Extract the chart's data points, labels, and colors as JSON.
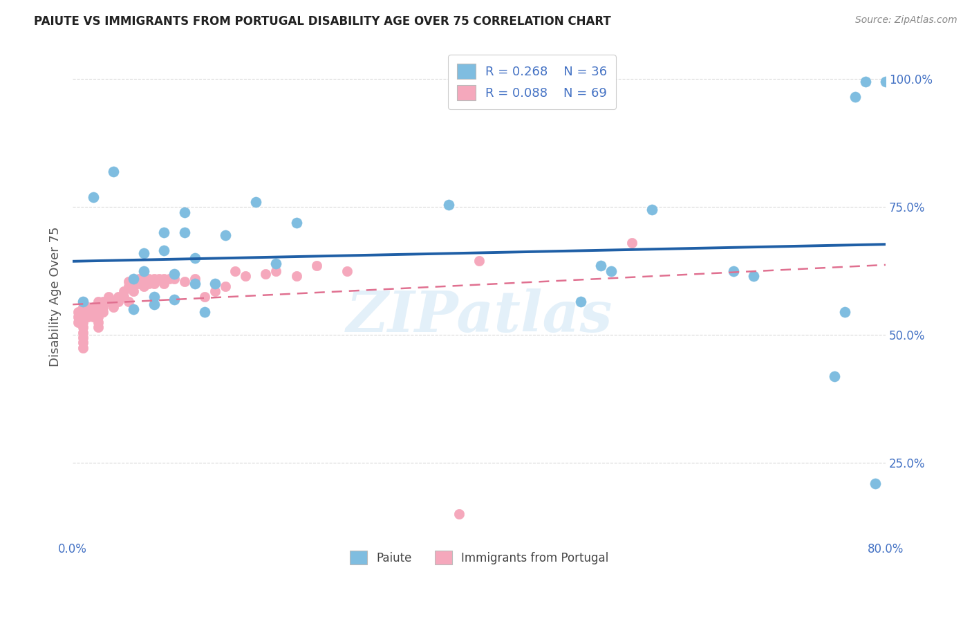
{
  "title": "PAIUTE VS IMMIGRANTS FROM PORTUGAL DISABILITY AGE OVER 75 CORRELATION CHART",
  "source": "Source: ZipAtlas.com",
  "ylabel": "Disability Age Over 75",
  "xlim": [
    0,
    0.8
  ],
  "ylim": [
    0.1,
    1.05
  ],
  "ytick_positions": [
    0.25,
    0.5,
    0.75,
    1.0
  ],
  "ytick_labels": [
    "25.0%",
    "50.0%",
    "75.0%",
    "100.0%"
  ],
  "legend_label1": "Paiute",
  "legend_label2": "Immigrants from Portugal",
  "R1": 0.268,
  "N1": 36,
  "R2": 0.088,
  "N2": 69,
  "color_blue": "#7fbde0",
  "color_pink": "#f5a8bc",
  "color_blue_line": "#1f5fa6",
  "color_pink_line": "#e07090",
  "paiute_x": [
    0.01,
    0.02,
    0.04,
    0.06,
    0.06,
    0.07,
    0.07,
    0.08,
    0.08,
    0.09,
    0.09,
    0.1,
    0.1,
    0.11,
    0.11,
    0.12,
    0.12,
    0.13,
    0.14,
    0.15,
    0.18,
    0.2,
    0.22,
    0.37,
    0.5,
    0.52,
    0.53,
    0.57,
    0.65,
    0.67,
    0.75,
    0.76,
    0.77,
    0.78,
    0.79,
    0.8
  ],
  "paiute_y": [
    0.565,
    0.77,
    0.82,
    0.61,
    0.55,
    0.66,
    0.625,
    0.575,
    0.56,
    0.7,
    0.665,
    0.62,
    0.57,
    0.74,
    0.7,
    0.65,
    0.6,
    0.545,
    0.6,
    0.695,
    0.76,
    0.64,
    0.72,
    0.755,
    0.565,
    0.635,
    0.625,
    0.745,
    0.625,
    0.615,
    0.42,
    0.545,
    0.965,
    0.995,
    0.21,
    0.995
  ],
  "portugal_x": [
    0.005,
    0.005,
    0.005,
    0.01,
    0.01,
    0.01,
    0.01,
    0.01,
    0.01,
    0.01,
    0.01,
    0.01,
    0.01,
    0.015,
    0.015,
    0.015,
    0.02,
    0.02,
    0.02,
    0.025,
    0.025,
    0.025,
    0.025,
    0.025,
    0.025,
    0.03,
    0.03,
    0.03,
    0.035,
    0.035,
    0.04,
    0.04,
    0.045,
    0.045,
    0.05,
    0.05,
    0.055,
    0.055,
    0.055,
    0.06,
    0.06,
    0.065,
    0.065,
    0.07,
    0.07,
    0.075,
    0.075,
    0.08,
    0.08,
    0.085,
    0.09,
    0.09,
    0.095,
    0.1,
    0.11,
    0.12,
    0.13,
    0.14,
    0.15,
    0.16,
    0.17,
    0.19,
    0.2,
    0.22,
    0.24,
    0.27,
    0.38,
    0.4,
    0.55
  ],
  "portugal_y": [
    0.545,
    0.535,
    0.525,
    0.565,
    0.555,
    0.545,
    0.535,
    0.525,
    0.515,
    0.505,
    0.495,
    0.485,
    0.475,
    0.555,
    0.545,
    0.535,
    0.555,
    0.545,
    0.535,
    0.565,
    0.555,
    0.545,
    0.535,
    0.525,
    0.515,
    0.565,
    0.555,
    0.545,
    0.575,
    0.565,
    0.565,
    0.555,
    0.575,
    0.565,
    0.585,
    0.575,
    0.605,
    0.595,
    0.565,
    0.595,
    0.585,
    0.61,
    0.6,
    0.605,
    0.595,
    0.61,
    0.6,
    0.61,
    0.6,
    0.61,
    0.61,
    0.6,
    0.61,
    0.61,
    0.605,
    0.61,
    0.575,
    0.585,
    0.595,
    0.625,
    0.615,
    0.62,
    0.625,
    0.615,
    0.635,
    0.625,
    0.15,
    0.645,
    0.68
  ],
  "background_color": "#ffffff",
  "grid_color": "#d0d0d0",
  "title_color": "#222222",
  "axis_label_color": "#555555",
  "tick_label_color": "#4472c4",
  "watermark_text": "ZIPatlas",
  "watermark_color": "#cde4f5",
  "watermark_fontsize": 60,
  "watermark_alpha": 0.55
}
